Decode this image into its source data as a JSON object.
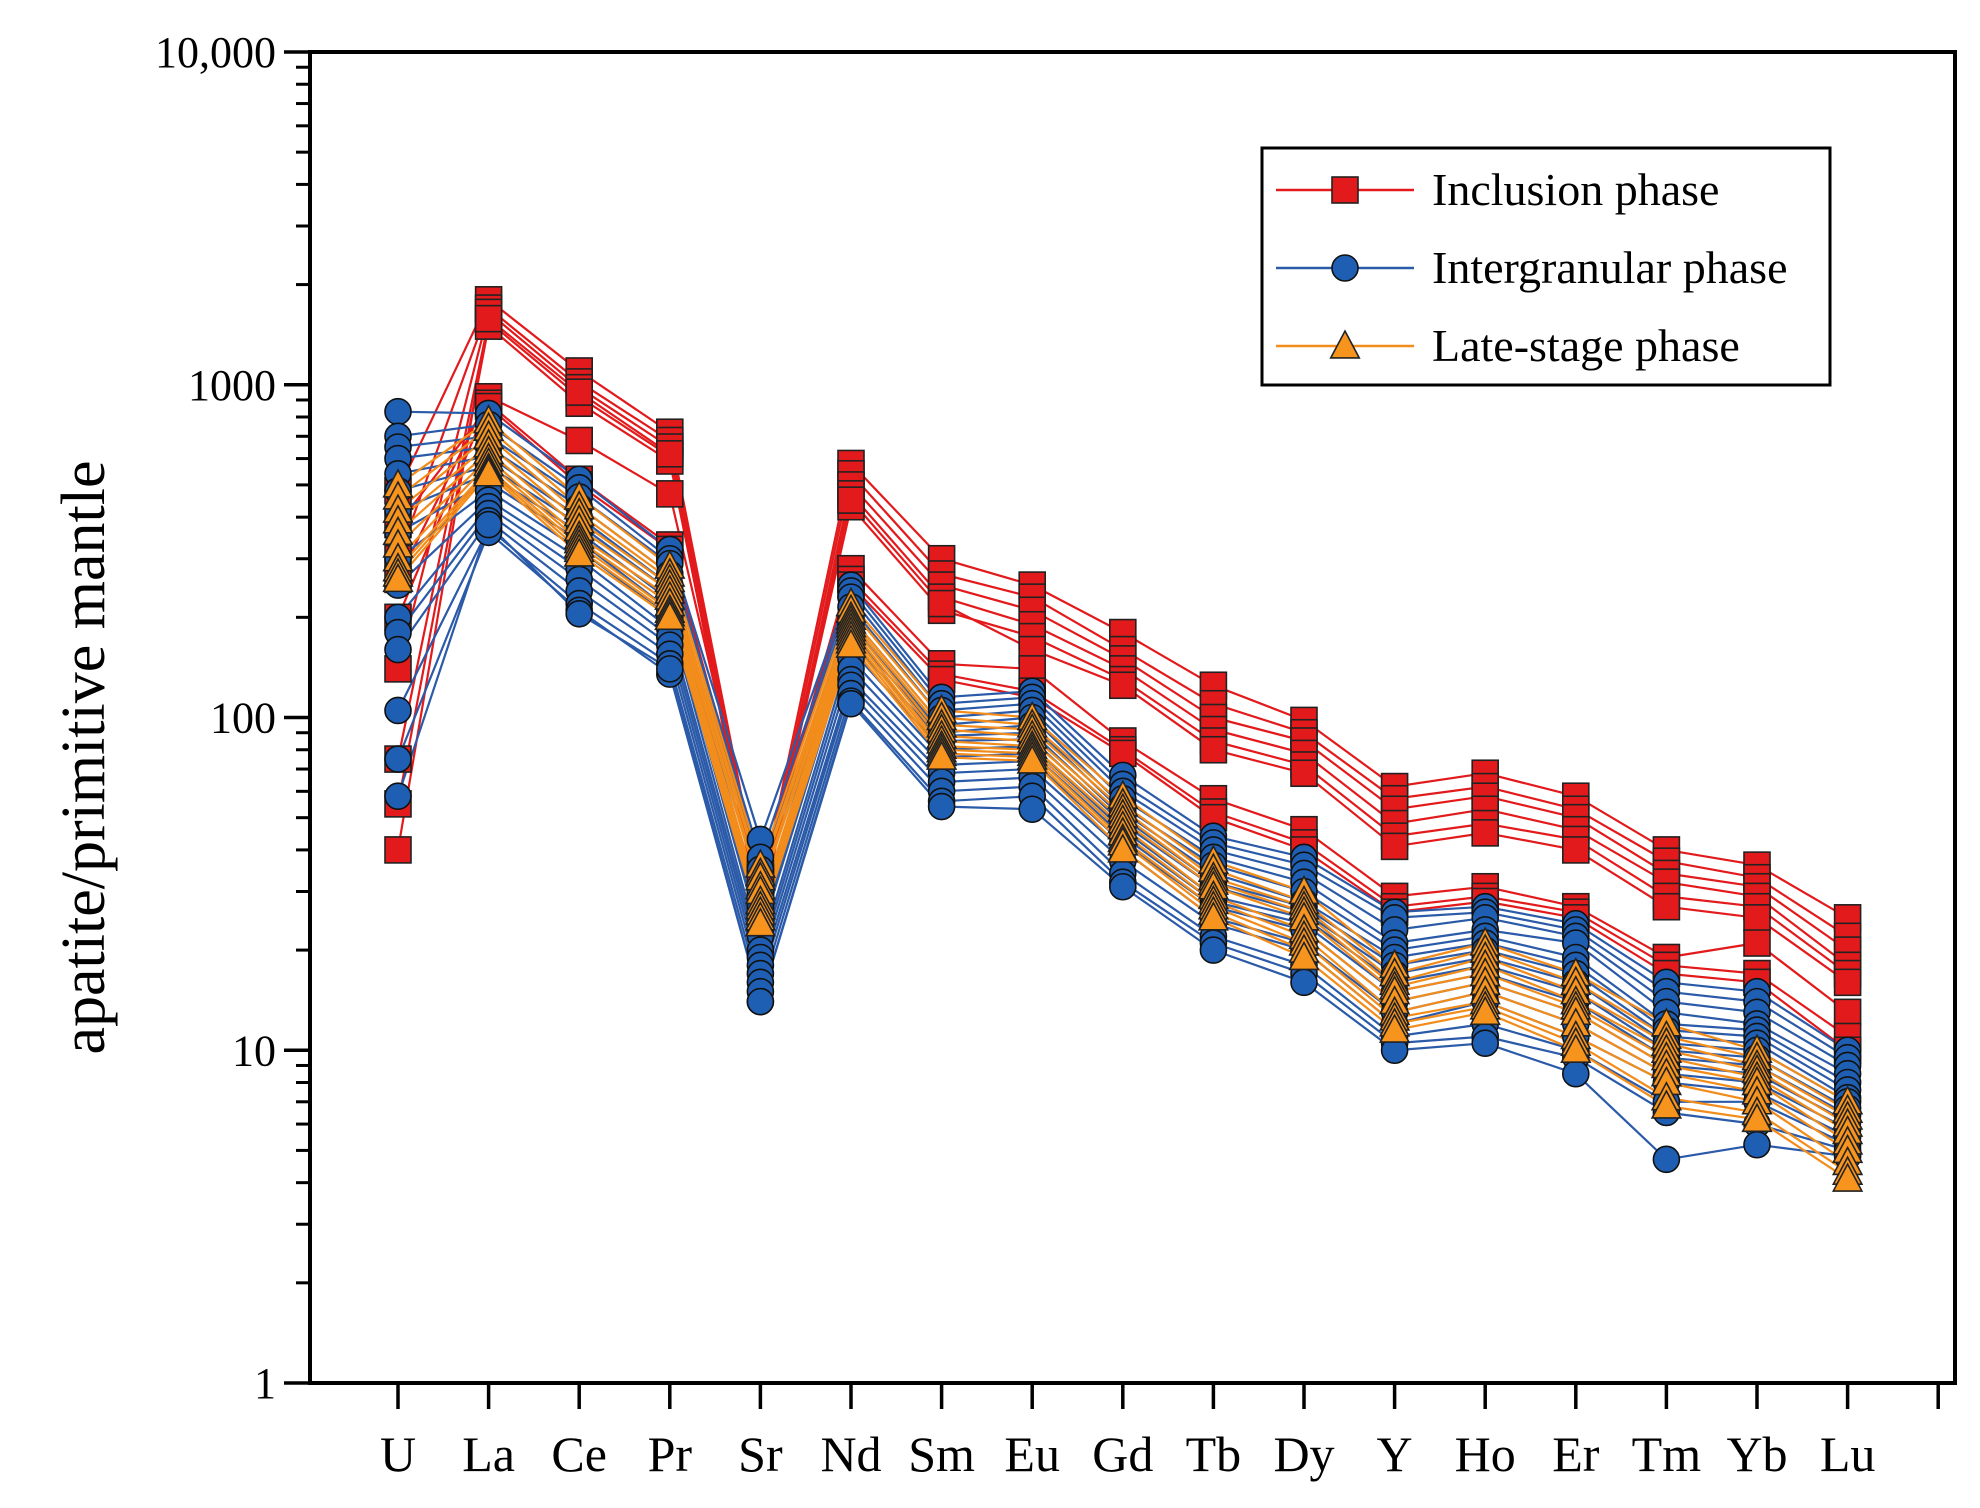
{
  "chart_data": {
    "type": "line",
    "ylabel": "apatite/primitive mantle",
    "xlabel": "",
    "yscale": "log",
    "ylim": [
      1,
      10000
    ],
    "yticks": [
      {
        "value": 1,
        "label": "1"
      },
      {
        "value": 10,
        "label": "10"
      },
      {
        "value": 100,
        "label": "100"
      },
      {
        "value": 1000,
        "label": "1000"
      },
      {
        "value": 10000,
        "label": "10,000"
      }
    ],
    "categories": [
      "U",
      "La",
      "Ce",
      "Pr",
      "Sr",
      "Nd",
      "Sm",
      "Eu",
      "Gd",
      "Tb",
      "Dy",
      "Y",
      "Ho",
      "Er",
      "Tm",
      "Yb",
      "Lu"
    ],
    "legend": {
      "position": "top-right"
    },
    "groups": [
      {
        "name": "Inclusion phase",
        "color": "#e31a1c",
        "marker": "square",
        "marker_fill": "#e31a1c",
        "samples": [
          [
            480,
            1800,
            1100,
            720,
            30,
            580,
            300,
            250,
            180,
            125,
            98,
            62,
            68,
            58,
            40,
            36,
            25
          ],
          [
            300,
            1700,
            1020,
            680,
            28,
            540,
            270,
            230,
            160,
            110,
            90,
            57,
            62,
            53,
            37,
            33,
            22
          ],
          [
            140,
            1650,
            980,
            650,
            26,
            500,
            250,
            210,
            150,
            100,
            85,
            53,
            58,
            50,
            34,
            31,
            20
          ],
          [
            75,
            1550,
            920,
            610,
            25,
            470,
            230,
            190,
            140,
            92,
            78,
            48,
            53,
            46,
            32,
            29,
            18
          ],
          [
            55,
            1500,
            880,
            590,
            27,
            430,
            210,
            175,
            130,
            85,
            72,
            44,
            48,
            43,
            29,
            27,
            17
          ],
          [
            40,
            1580,
            950,
            620,
            29,
            450,
            220,
            160,
            125,
            80,
            68,
            41,
            45,
            40,
            27,
            25,
            16
          ],
          [
            260,
            920,
            680,
            470,
            32,
            280,
            145,
            140,
            85,
            57,
            46,
            29,
            31,
            27,
            19,
            21,
            13
          ],
          [
            200,
            880,
            520,
            330,
            34,
            260,
            135,
            120,
            80,
            52,
            42,
            27,
            29,
            26,
            18,
            17,
            11
          ],
          [
            380,
            860,
            500,
            320,
            33,
            250,
            130,
            115,
            78,
            50,
            40,
            26,
            28,
            25,
            17,
            16,
            10
          ]
        ]
      },
      {
        "name": "Intergranular phase",
        "color": "#2a5aa8",
        "marker": "circle",
        "marker_fill": "#1f5fb3",
        "samples": [
          [
            830,
            820,
            520,
            320,
            43,
            250,
            115,
            120,
            67,
            44,
            38,
            26,
            27,
            24,
            16,
            15,
            10
          ],
          [
            700,
            760,
            490,
            300,
            38,
            240,
            110,
            115,
            63,
            42,
            36,
            25,
            26,
            23,
            15,
            14,
            9.5
          ],
          [
            650,
            700,
            460,
            290,
            35,
            230,
            105,
            110,
            60,
            40,
            34,
            23,
            25,
            22,
            14,
            13,
            9
          ],
          [
            600,
            650,
            430,
            270,
            30,
            215,
            100,
            105,
            57,
            38,
            32,
            21,
            23,
            21,
            13,
            12,
            8.5
          ],
          [
            540,
            610,
            400,
            250,
            27,
            200,
            95,
            100,
            54,
            36,
            30,
            20,
            22,
            19,
            12,
            11.5,
            8
          ],
          [
            480,
            570,
            380,
            240,
            25,
            190,
            90,
            95,
            52,
            34,
            28,
            19,
            21,
            18,
            11.5,
            11,
            7.6
          ],
          [
            420,
            540,
            360,
            225,
            23,
            180,
            88,
            90,
            50,
            32,
            27,
            18,
            20,
            17,
            11,
            10.5,
            7.2
          ],
          [
            360,
            510,
            340,
            210,
            22,
            170,
            85,
            86,
            48,
            31,
            26,
            17,
            19,
            16,
            10.5,
            10,
            7
          ],
          [
            300,
            480,
            320,
            200,
            20,
            160,
            80,
            82,
            46,
            29,
            25,
            16,
            18,
            15,
            10,
            9.5,
            6.7
          ],
          [
            250,
            450,
            300,
            185,
            19,
            150,
            76,
            78,
            44,
            28,
            24,
            15,
            17,
            14,
            9.5,
            9,
            6.4
          ],
          [
            200,
            430,
            280,
            175,
            18,
            140,
            72,
            74,
            42,
            27,
            23,
            14,
            16,
            13,
            9,
            8.5,
            6.1
          ],
          [
            180,
            410,
            260,
            165,
            17,
            130,
            68,
            70,
            40,
            25,
            21,
            13,
            15,
            12,
            8.5,
            8,
            5.8
          ],
          [
            160,
            390,
            240,
            155,
            16,
            125,
            64,
            66,
            37,
            24,
            20,
            12,
            14,
            11,
            8,
            7.5,
            5.5
          ],
          [
            105,
            370,
            220,
            145,
            15,
            118,
            60,
            62,
            34,
            22,
            18,
            11,
            12,
            10,
            7,
            7,
            5.2
          ],
          [
            75,
            360,
            210,
            135,
            14,
            112,
            56,
            58,
            32,
            21,
            17,
            10.5,
            11,
            9.5,
            6.5,
            6,
            5
          ],
          [
            58,
            380,
            205,
            140,
            14,
            110,
            54,
            53,
            31,
            20,
            16,
            10,
            10.5,
            8.5,
            4.7,
            5.2,
            4.8
          ]
        ]
      },
      {
        "name": "Late-stage phase",
        "color": "#f28c1b",
        "marker": "triangle",
        "marker_fill": "#f7941d",
        "samples": [
          [
            500,
            780,
            460,
            285,
            36,
            220,
            105,
            100,
            58,
            37,
            30,
            18,
            21,
            17,
            12,
            10,
            7
          ],
          [
            460,
            740,
            430,
            270,
            34,
            210,
            100,
            95,
            55,
            35,
            28,
            17,
            20,
            16,
            11,
            9.5,
            6.6
          ],
          [
            420,
            700,
            410,
            260,
            33,
            200,
            95,
            92,
            53,
            33,
            27,
            16,
            19,
            15,
            10.5,
            9,
            6.3
          ],
          [
            390,
            660,
            390,
            250,
            31,
            195,
            92,
            88,
            51,
            32,
            26,
            15.5,
            18,
            14,
            10,
            8.7,
            6
          ],
          [
            360,
            630,
            370,
            240,
            30,
            190,
            88,
            85,
            49,
            31,
            25,
            15,
            17,
            13.5,
            9.5,
            8.3,
            5.7
          ],
          [
            330,
            600,
            350,
            230,
            28,
            185,
            85,
            82,
            47,
            29,
            23,
            14,
            16,
            13,
            9,
            8,
            5.3
          ],
          [
            300,
            580,
            340,
            220,
            27,
            180,
            82,
            80,
            45,
            28,
            22,
            13,
            15,
            12,
            8.5,
            7.5,
            5
          ],
          [
            280,
            560,
            330,
            210,
            26,
            175,
            80,
            78,
            43,
            27,
            21,
            12.5,
            14,
            11,
            8,
            7,
            4.6
          ],
          [
            270,
            550,
            320,
            205,
            25,
            170,
            78,
            76,
            42,
            26,
            20,
            12,
            13.5,
            10.5,
            7.2,
            6.5,
            4.3
          ],
          [
            260,
            540,
            310,
            200,
            24,
            165,
            76,
            74,
            40,
            25,
            19,
            11.5,
            13,
            10,
            6.8,
            6.2,
            4.1
          ]
        ]
      }
    ]
  }
}
